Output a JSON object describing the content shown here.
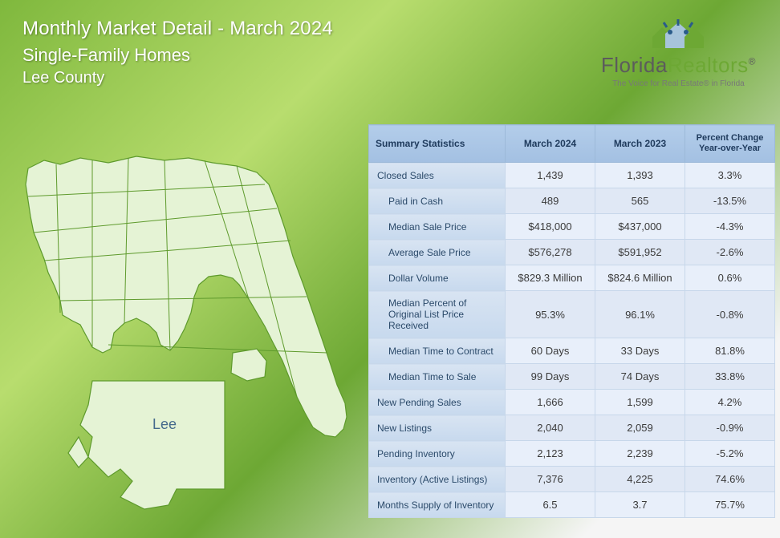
{
  "header": {
    "title": "Monthly Market Detail - March 2024",
    "subtitle": "Single-Family Homes",
    "region": "Lee County"
  },
  "logo": {
    "brand_left": "Florida",
    "brand_right": "Realtors",
    "tagline": "The Voice for Real Estate® in Florida"
  },
  "map": {
    "inset_label": "Lee"
  },
  "colors": {
    "header_text": "#ffffff",
    "table_header_bg": "#a9c5e5",
    "table_label_bg": "#cedded",
    "table_border": "#c7d7ea",
    "brand_green": "#6da834"
  },
  "table": {
    "headers": {
      "stat": "Summary Statistics",
      "col_current": "March 2024",
      "col_prev": "March 2023",
      "col_change": "Percent Change Year-over-Year"
    },
    "rows": [
      {
        "label": "Closed Sales",
        "current": "1,439",
        "prev": "1,393",
        "change": "3.3%"
      },
      {
        "label": "Paid in Cash",
        "current": "489",
        "prev": "565",
        "change": "-13.5%",
        "indent": true
      },
      {
        "label": "Median Sale Price",
        "current": "$418,000",
        "prev": "$437,000",
        "change": "-4.3%",
        "indent": true
      },
      {
        "label": "Average Sale Price",
        "current": "$576,278",
        "prev": "$591,952",
        "change": "-2.6%",
        "indent": true
      },
      {
        "label": "Dollar Volume",
        "current": "$829.3 Million",
        "prev": "$824.6 Million",
        "change": "0.6%",
        "indent": true
      },
      {
        "label": "Median Percent of Original List Price Received",
        "current": "95.3%",
        "prev": "96.1%",
        "change": "-0.8%",
        "indent": true
      },
      {
        "label": "Median Time to Contract",
        "current": "60 Days",
        "prev": "33 Days",
        "change": "81.8%",
        "indent": true
      },
      {
        "label": "Median Time to Sale",
        "current": "99 Days",
        "prev": "74 Days",
        "change": "33.8%",
        "indent": true
      },
      {
        "label": "New Pending Sales",
        "current": "1,666",
        "prev": "1,599",
        "change": "4.2%"
      },
      {
        "label": "New Listings",
        "current": "2,040",
        "prev": "2,059",
        "change": "-0.9%"
      },
      {
        "label": "Pending Inventory",
        "current": "2,123",
        "prev": "2,239",
        "change": "-5.2%"
      },
      {
        "label": "Inventory (Active Listings)",
        "current": "7,376",
        "prev": "4,225",
        "change": "74.6%"
      },
      {
        "label": "Months Supply of Inventory",
        "current": "6.5",
        "prev": "3.7",
        "change": "75.7%"
      }
    ]
  }
}
